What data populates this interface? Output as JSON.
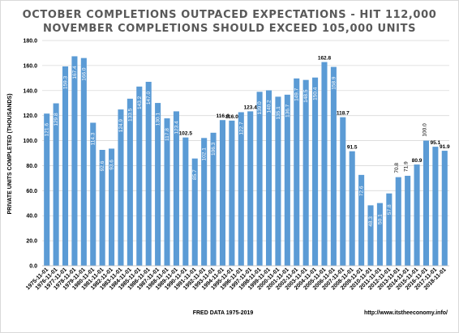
{
  "chart_data": {
    "type": "bar",
    "title_line1": "OCTOBER COMPLETIONS OUTPACED EXPECTATIONS - HIT 112,000",
    "title_line2": "NOVEMBER COMPLETIONS SHOULD EXCEED 105,000 UNITS",
    "ylabel": "PRIVATE UNITS COMPLETED (THOUSANDS)",
    "xlabel": "FRED DATA 1975-2019",
    "source_url": "http://www.itstheeconomy.info/",
    "ylim": [
      0,
      180
    ],
    "yticks": [
      "0.0",
      "20.0",
      "40.0",
      "60.0",
      "80.0",
      "100.0",
      "120.0",
      "140.0",
      "160.0",
      "180.0"
    ],
    "grid": true,
    "bar_color": "#5b9bd5",
    "categories": [
      "1975-11-01",
      "1976-11-01",
      "1977-11-01",
      "1978-11-01",
      "1979-11-01",
      "1980-11-01",
      "1981-11-01",
      "1982-11-01",
      "1983-11-01",
      "1984-11-01",
      "1985-11-01",
      "1986-11-01",
      "1987-11-01",
      "1988-11-01",
      "1989-11-01",
      "1990-11-01",
      "1991-11-01",
      "1992-11-01",
      "1993-11-01",
      "1994-11-01",
      "1995-11-01",
      "1996-11-01",
      "1997-11-01",
      "1998-11-01",
      "1999-11-01",
      "2000-11-01",
      "2001-11-01",
      "2002-11-01",
      "2003-11-01",
      "2004-11-01",
      "2005-11-01",
      "2006-11-01",
      "2007-11-01",
      "2008-11-01",
      "2009-11-01",
      "2010-11-01",
      "2011-11-01",
      "2012-11-01",
      "2013-11-01",
      "2014-11-01",
      "2015-11-01",
      "2016-11-01",
      "2017-11-01",
      "2018-11-01"
    ],
    "values": [
      121.6,
      129.8,
      159.3,
      167.4,
      166.0,
      114.3,
      92.6,
      93.6,
      124.9,
      133.5,
      143.2,
      147.0,
      130.1,
      117.8,
      123.4,
      102.5,
      85.7,
      102.1,
      106.3,
      116.4,
      116.0,
      122.7,
      123.4,
      139.0,
      140.2,
      135.1,
      136.7,
      149.7,
      148.5,
      150.4,
      162.8,
      158.9,
      118.7,
      91.5,
      72.6,
      48.3,
      50.1,
      57.8,
      70.8,
      71.9,
      80.9,
      100.0,
      95.1,
      91.9
    ],
    "value_labels": [
      "121.6",
      "129.8",
      "159.3",
      "167.4",
      "166.0",
      "114.3",
      "92.6",
      "93.6",
      "124.9",
      "133.5",
      "143.2",
      "147.0",
      "130.1",
      "117.8",
      "123.4",
      "102.5",
      "85.7",
      "102.1",
      "106.3",
      "116.4",
      "116.0",
      "122.7",
      "123.4",
      "139.0",
      "140.2",
      "135.1",
      "136.7",
      "149.7",
      "148.5",
      "150.4",
      "162.8",
      "158.9",
      "118.7",
      "91.5",
      "72.6",
      "48.3",
      "50.1",
      "57.8",
      "70.8",
      "71.9",
      "80.9",
      "100.0",
      "95.1",
      "91.9"
    ],
    "outside_bold": [
      15,
      19,
      20,
      22,
      30,
      32,
      33,
      40,
      42,
      43
    ],
    "outside_plain": [
      38,
      39,
      41
    ]
  }
}
